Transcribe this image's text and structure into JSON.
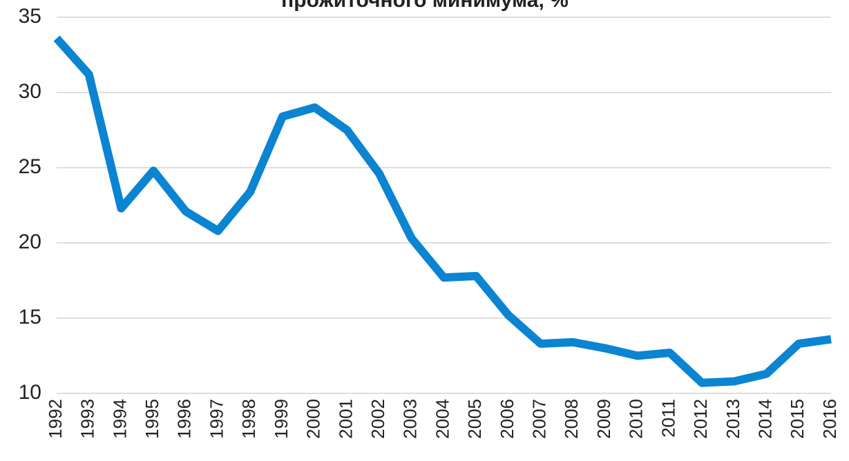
{
  "chart_data": {
    "type": "line",
    "title": "прожиточного минимума, %",
    "categories": [
      "1992",
      "1993",
      "1994",
      "1995",
      "1996",
      "1997",
      "1998",
      "1999",
      "2000",
      "2001",
      "2002",
      "2003",
      "2004",
      "2005",
      "2006",
      "2007",
      "2008",
      "2009",
      "2010",
      "2011",
      "2012",
      "2013",
      "2014",
      "2015",
      "2016"
    ],
    "values": [
      33.6,
      31.2,
      22.3,
      24.8,
      22.1,
      20.8,
      23.4,
      28.4,
      29.0,
      27.5,
      24.6,
      20.3,
      17.7,
      17.8,
      15.2,
      13.3,
      13.4,
      13.0,
      12.5,
      12.7,
      10.7,
      10.8,
      11.3,
      13.3,
      13.6
    ],
    "color": "#0b84d2",
    "ylim": [
      10,
      35
    ],
    "yticks": [
      10,
      15,
      20,
      25,
      30,
      35
    ],
    "grid": true
  }
}
